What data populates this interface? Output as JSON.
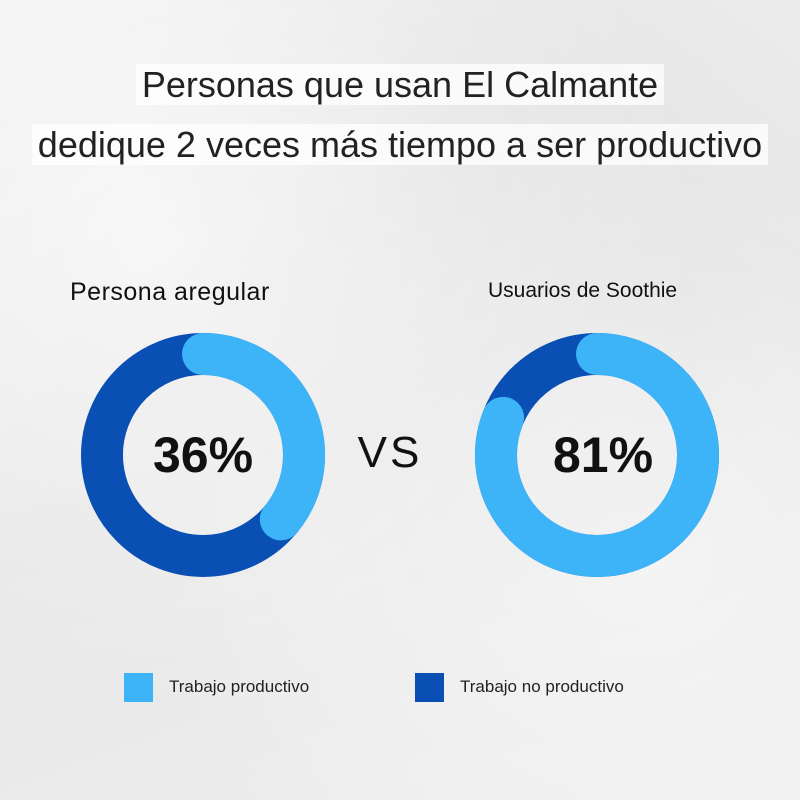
{
  "title": {
    "line1": "Personas que usan El Calmante",
    "line2": "dedique 2 veces más tiempo a ser productivo"
  },
  "vs_label": "VS",
  "colors": {
    "productive": "#3db4f7",
    "unproductive": "#0a4fb4"
  },
  "legend": {
    "productive": "Trabajo productivo",
    "unproductive": "Trabajo no productivo"
  },
  "chart_data": [
    {
      "type": "pie",
      "style": "donut",
      "title": "Persona aregular",
      "center_label": "36%",
      "slices": [
        {
          "label": "Trabajo productivo",
          "value": 36
        },
        {
          "label": "Trabajo no productivo",
          "value": 64
        }
      ]
    },
    {
      "type": "pie",
      "style": "donut",
      "title": "Usuarios de Soothie",
      "center_label": "81%",
      "slices": [
        {
          "label": "Trabajo productivo",
          "value": 81
        },
        {
          "label": "Trabajo no productivo",
          "value": 19
        }
      ]
    }
  ]
}
